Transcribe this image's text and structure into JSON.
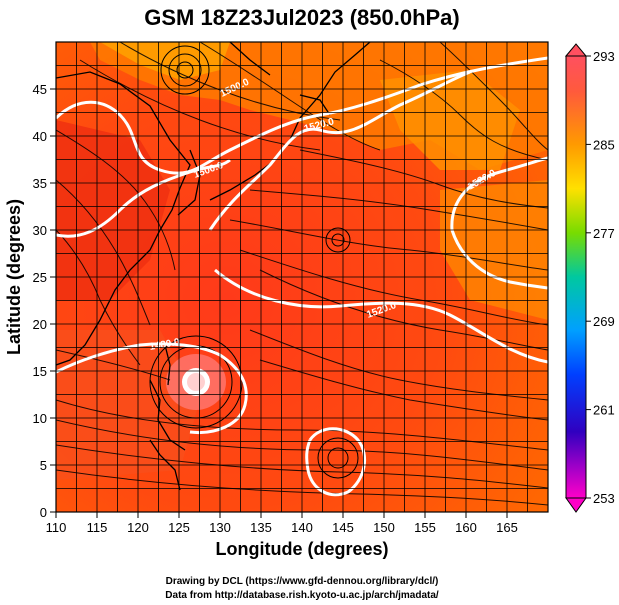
{
  "title": "GSM 18Z23Jul2023 (850.0hPa)",
  "x_axis": {
    "label": "Longitude (degrees)",
    "range": [
      110,
      170
    ],
    "ticks": [
      "110",
      "115",
      "120",
      "125",
      "130",
      "135",
      "140",
      "145",
      "150",
      "155",
      "160",
      "165"
    ]
  },
  "y_axis": {
    "label": "Latitude  (degrees)",
    "range": [
      0,
      50
    ],
    "ticks": [
      "0",
      "5",
      "10",
      "15",
      "20",
      "25",
      "30",
      "35",
      "40",
      "45"
    ]
  },
  "colorbar": {
    "ticks": [
      "293",
      "285",
      "277",
      "269",
      "261",
      "253"
    ],
    "range": [
      253,
      293
    ],
    "colors": [
      "#d6008e",
      "#3a00c8",
      "#0050ff",
      "#00c8ff",
      "#00c86e",
      "#9ee600",
      "#ffe600",
      "#ff9600",
      "#ff3c00",
      "#e6001e"
    ]
  },
  "contour_labels": [
    "1500.0",
    "1520.0",
    "1500.0",
    "1520.0",
    "1480.0",
    "1520.0"
  ],
  "credits": {
    "line1": "Drawing by DCL (https://www.gfd-dennou.org/library/dcl/)",
    "line2": "Data from http://database.rish.kyoto-u.ac.jp/arch/jmadata/"
  }
}
